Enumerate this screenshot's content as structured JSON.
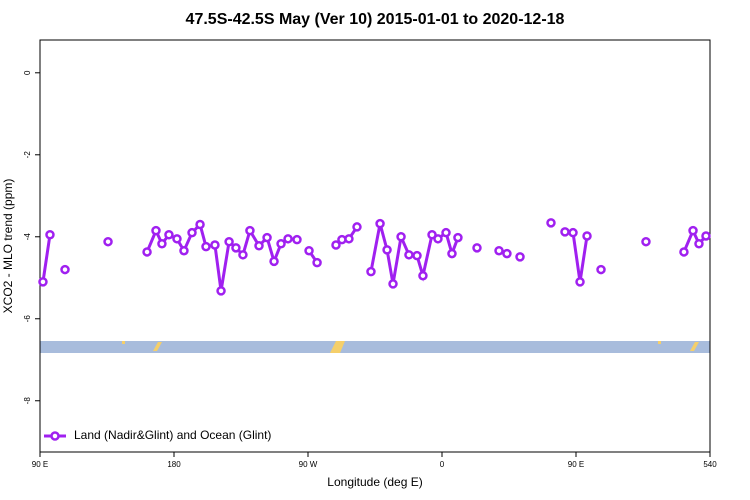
{
  "chart_data": {
    "type": "line",
    "title": "47.5S-42.5S May (Ver 10)   2015-01-01 to 2020-12-18",
    "x_label": "Longitude (deg E)",
    "y_label": "XCO2 - MLO trend (ppm)",
    "xlim": [
      90,
      540
    ],
    "xticks": [
      {
        "value": 90,
        "label": "90 E"
      },
      180,
      {
        "value": 270,
        "label": "90 W"
      },
      {
        "value": 360,
        "label": "0"
      },
      {
        "value": 450,
        "label": "90 E"
      },
      540
    ],
    "ylim": [
      -9.25,
      0.8
    ],
    "yticks": [
      0,
      -2,
      -4,
      -6,
      -8
    ],
    "legend": "bottom-left",
    "series": [
      {
        "name": "Land (Nadir&Glint) and Ocean (Glint)",
        "color": "#a020f0",
        "x": [
          92.0,
          96.7,
          null,
          106.8,
          null,
          135.7,
          null,
          161.9,
          167.9,
          171.9,
          176.6,
          182.0,
          186.7,
          192.1,
          197.5,
          201.5,
          207.5,
          211.6,
          217.0,
          221.6,
          226.3,
          231.0,
          237.1,
          242.5,
          247.2,
          251.9,
          256.6,
          null,
          262.6,
          null,
          270.7,
          276.1,
          null,
          288.8,
          292.8,
          297.5,
          302.9,
          null,
          312.3,
          318.4,
          323.1,
          327.1,
          332.5,
          337.8,
          343.2,
          347.2,
          353.3,
          357.3,
          362.7,
          366.7,
          370.7,
          null,
          383.5,
          null,
          398.3,
          403.6,
          null,
          412.4,
          null,
          433.2,
          null,
          442.6,
          448.0,
          452.7,
          457.4,
          null,
          466.8,
          null,
          497.0,
          null,
          522.5,
          528.6,
          532.6,
          537.3
        ],
        "values": [
          -5.1,
          -3.95,
          null,
          -4.8,
          null,
          -4.12,
          null,
          -4.37,
          -3.85,
          -4.17,
          -3.95,
          -4.05,
          -4.34,
          -3.9,
          -3.7,
          -4.24,
          -4.2,
          -5.32,
          -4.12,
          -4.27,
          -4.44,
          -3.85,
          -4.22,
          -4.02,
          -4.6,
          -4.17,
          -4.05,
          null,
          -4.07,
          null,
          -4.34,
          -4.63,
          null,
          -4.2,
          -4.07,
          -4.05,
          -3.76,
          null,
          -4.85,
          -3.68,
          -4.32,
          -5.15,
          -4.0,
          -4.44,
          -4.46,
          -4.95,
          -3.95,
          -4.05,
          -3.9,
          -4.41,
          -4.02,
          null,
          -4.27,
          null,
          -4.34,
          -4.41,
          null,
          -4.49,
          null,
          -3.66,
          null,
          -3.88,
          -3.9,
          -5.1,
          -3.98,
          null,
          -4.8,
          null,
          -4.12,
          null,
          -4.37,
          -3.85,
          -4.17,
          -3.98
        ]
      }
    ]
  }
}
